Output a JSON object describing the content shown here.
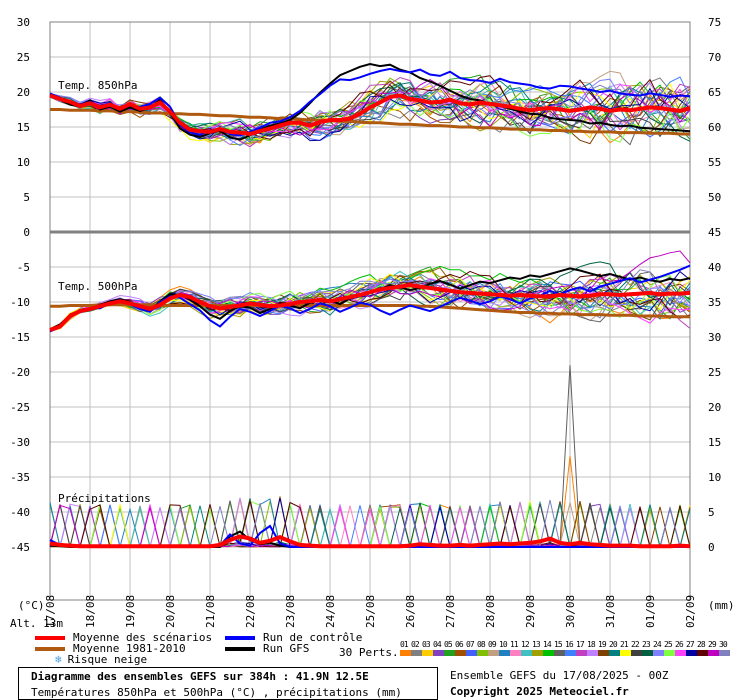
{
  "chart_data": {
    "type": "line",
    "title": "Diagramme des ensembles GEFS sur 384h : 41.9N 12.5E",
    "subtitle": "Températures 850hPa et 500hPa (°C) , précipitations (mm)",
    "run_info": "Ensemble GEFS du 17/08/2025 - 00Z",
    "copyright": "Copyright 2025 Meteociel.fr",
    "altitude": "Alt. 13m",
    "left_axis_unit": "(°C)",
    "right_axis_unit": "(mm)",
    "left_ticks": [
      30,
      25,
      20,
      15,
      10,
      5,
      0,
      -5,
      -10,
      -15,
      -20,
      -25,
      -30,
      -35,
      -40,
      -45
    ],
    "right_ticks_upper": [
      75,
      70,
      65,
      60,
      55,
      50,
      45
    ],
    "right_ticks_lower": [
      40,
      35,
      30,
      25,
      20,
      15,
      10,
      5,
      0
    ],
    "x_labels": [
      "17/08",
      "18/08",
      "19/08",
      "20/08",
      "21/08",
      "22/08",
      "23/08",
      "24/08",
      "25/08",
      "26/08",
      "27/08",
      "28/08",
      "29/08",
      "30/08",
      "31/08",
      "01/09",
      "02/09"
    ],
    "panels": {
      "t850": "Temp. 850hPa",
      "t500": "Temp. 500hPa",
      "precip": "Précipitations"
    },
    "t850_mean_scenarios": [
      19.5,
      19.0,
      18.6,
      18.0,
      18.4,
      17.8,
      18.2,
      17.6,
      18.3,
      17.6,
      17.8,
      18.5,
      17.2,
      15.6,
      14.6,
      14.4,
      14.3,
      14.7,
      14.3,
      14.2,
      14.0,
      14.4,
      14.8,
      15.2,
      15.6,
      15.6,
      15.2,
      15.7,
      16.0,
      16.0,
      16.2,
      16.9,
      17.8,
      18.5,
      19.3,
      19.5,
      19.0,
      18.8,
      18.5,
      18.6,
      18.9,
      18.4,
      18.2,
      18.5,
      18.3,
      18.1,
      17.9,
      17.6,
      17.4,
      17.6,
      17.7,
      17.5,
      17.3,
      17.5,
      17.8,
      17.6,
      17.3,
      17.5,
      17.4,
      17.6,
      17.8,
      17.7,
      17.5,
      17.3,
      17.7
    ],
    "t850_climatology": [
      17.5,
      17.5,
      17.4,
      17.4,
      17.4,
      17.3,
      17.3,
      17.2,
      17.2,
      17.1,
      17.0,
      17.0,
      16.9,
      16.9,
      16.8,
      16.8,
      16.7,
      16.6,
      16.6,
      16.5,
      16.4,
      16.4,
      16.3,
      16.2,
      16.2,
      16.1,
      16.0,
      16.0,
      15.9,
      15.8,
      15.8,
      15.7,
      15.6,
      15.6,
      15.5,
      15.4,
      15.4,
      15.3,
      15.2,
      15.2,
      15.1,
      15.0,
      15.0,
      14.9,
      14.9,
      14.8,
      14.7,
      14.7,
      14.6,
      14.6,
      14.5,
      14.5,
      14.4,
      14.4,
      14.3,
      14.3,
      14.3,
      14.2,
      14.2,
      14.2,
      14.1,
      14.1,
      14.1,
      14.0,
      14.0
    ],
    "t850_control": [
      19.8,
      19.2,
      18.5,
      18.1,
      18.6,
      18.0,
      18.4,
      17.5,
      18.1,
      17.9,
      18.3,
      19.2,
      17.9,
      15.3,
      14.2,
      13.9,
      14.5,
      14.8,
      14.0,
      13.8,
      14.3,
      14.9,
      15.6,
      15.8,
      16.4,
      17.3,
      18.6,
      19.7,
      20.9,
      21.8,
      21.7,
      22.1,
      22.6,
      23.0,
      23.3,
      23.0,
      22.8,
      23.2,
      22.5,
      22.3,
      22.9,
      22.0,
      21.7,
      21.6,
      21.3,
      21.9,
      21.4,
      21.2,
      21.0,
      20.6,
      20.5,
      20.9,
      20.8,
      20.5,
      20.3,
      20.0,
      20.2,
      19.8,
      19.6,
      19.5,
      19.8,
      19.6,
      19.3,
      19.5,
      19.4
    ],
    "t850_gfs": [
      19.6,
      18.9,
      18.2,
      17.9,
      18.8,
      17.5,
      17.9,
      17.2,
      17.8,
      17.3,
      17.7,
      18.9,
      17.0,
      14.8,
      13.9,
      13.6,
      14.1,
      14.5,
      13.5,
      13.2,
      13.8,
      14.6,
      15.2,
      15.5,
      16.0,
      17.0,
      18.4,
      19.9,
      21.2,
      22.4,
      23.0,
      23.6,
      24.0,
      23.7,
      23.9,
      23.2,
      22.8,
      22.0,
      21.5,
      20.9,
      20.2,
      19.5,
      19.0,
      18.8,
      18.3,
      18.0,
      17.6,
      17.2,
      16.9,
      16.8,
      16.3,
      16.1,
      16.0,
      15.9,
      15.5,
      15.6,
      15.3,
      15.1,
      15.2,
      14.9,
      14.8,
      14.7,
      14.6,
      14.5,
      14.4
    ],
    "t500_mean_scenarios": [
      -14.0,
      -13.5,
      -12.0,
      -11.3,
      -11.0,
      -10.6,
      -10.2,
      -9.9,
      -10.2,
      -10.6,
      -11.0,
      -10.4,
      -9.5,
      -9.0,
      -9.3,
      -10.0,
      -10.6,
      -10.9,
      -10.7,
      -10.5,
      -10.2,
      -10.4,
      -10.6,
      -10.5,
      -10.3,
      -10.0,
      -9.9,
      -9.7,
      -9.9,
      -9.6,
      -9.3,
      -9.0,
      -8.6,
      -8.2,
      -8.0,
      -7.8,
      -7.6,
      -7.8,
      -8.0,
      -8.2,
      -8.4,
      -8.6,
      -8.7,
      -8.8,
      -8.9,
      -9.0,
      -9.1,
      -9.0,
      -9.1,
      -9.2,
      -9.2,
      -9.0,
      -9.1,
      -9.2,
      -9.1,
      -8.9,
      -8.9,
      -9.0,
      -8.9,
      -8.8,
      -8.7,
      -8.9,
      -8.8,
      -8.8,
      -8.7
    ],
    "t500_climatology": [
      -10.6,
      -10.6,
      -10.5,
      -10.5,
      -10.5,
      -10.4,
      -10.4,
      -10.4,
      -10.4,
      -10.4,
      -10.4,
      -10.5,
      -10.5,
      -10.5,
      -10.5,
      -10.5,
      -10.5,
      -10.5,
      -10.5,
      -10.5,
      -10.5,
      -10.5,
      -10.5,
      -10.5,
      -10.5,
      -10.5,
      -10.5,
      -10.5,
      -10.5,
      -10.5,
      -10.5,
      -10.5,
      -10.5,
      -10.5,
      -10.5,
      -10.5,
      -10.5,
      -10.6,
      -10.6,
      -10.7,
      -10.8,
      -10.9,
      -11.0,
      -11.1,
      -11.2,
      -11.3,
      -11.4,
      -11.5,
      -11.5,
      -11.6,
      -11.6,
      -11.7,
      -11.7,
      -11.8,
      -11.8,
      -11.8,
      -11.9,
      -11.9,
      -11.9,
      -12.0,
      -12.0,
      -12.0,
      -12.1,
      -12.1,
      -12.1
    ],
    "t500_control": [
      -14.2,
      -13.6,
      -12.2,
      -11.1,
      -10.9,
      -10.9,
      -10.1,
      -9.7,
      -10.3,
      -11.0,
      -11.4,
      -10.0,
      -9.2,
      -9.4,
      -10.3,
      -11.2,
      -12.6,
      -13.5,
      -12.1,
      -11.0,
      -11.4,
      -12.0,
      -11.3,
      -10.5,
      -10.9,
      -11.6,
      -11.0,
      -10.2,
      -10.6,
      -11.4,
      -10.8,
      -10.1,
      -10.4,
      -11.2,
      -11.8,
      -11.1,
      -10.5,
      -10.9,
      -11.3,
      -10.7,
      -10.0,
      -9.4,
      -9.8,
      -10.3,
      -9.9,
      -9.2,
      -9.6,
      -10.2,
      -9.5,
      -9.1,
      -8.4,
      -8.9,
      -8.3,
      -7.9,
      -8.5,
      -7.8,
      -7.4,
      -7.0,
      -6.6,
      -7.2,
      -6.8,
      -6.4,
      -5.9,
      -5.4,
      -4.8
    ],
    "t500_gfs": [
      -13.9,
      -13.2,
      -11.9,
      -11.2,
      -11.0,
      -10.4,
      -9.9,
      -9.6,
      -10.0,
      -10.8,
      -11.3,
      -9.9,
      -8.9,
      -9.0,
      -9.7,
      -10.6,
      -11.8,
      -12.4,
      -11.3,
      -10.6,
      -10.8,
      -11.6,
      -11.0,
      -10.2,
      -10.5,
      -10.9,
      -10.1,
      -9.6,
      -9.8,
      -10.3,
      -9.5,
      -9.0,
      -8.6,
      -8.2,
      -7.6,
      -7.9,
      -8.3,
      -8.0,
      -7.4,
      -7.0,
      -7.5,
      -8.1,
      -7.6,
      -7.1,
      -7.3,
      -6.9,
      -6.5,
      -6.7,
      -6.2,
      -6.4,
      -6.0,
      -5.6,
      -5.2,
      -5.5,
      -5.9,
      -6.3,
      -6.0,
      -6.4,
      -6.8,
      -6.5,
      -6.9,
      -7.1,
      -6.7,
      -6.9,
      -6.6
    ],
    "precip_mean_scenarios": [
      0.5,
      0.3,
      0.2,
      0.1,
      0.1,
      0.1,
      0.1,
      0.1,
      0.1,
      0.1,
      0.1,
      0.1,
      0.1,
      0.1,
      0.1,
      0.1,
      0.1,
      0.3,
      1.0,
      1.5,
      1.2,
      0.6,
      0.9,
      1.4,
      0.8,
      0.3,
      0.2,
      0.1,
      0.1,
      0.1,
      0.1,
      0.1,
      0.1,
      0.1,
      0.1,
      0.1,
      0.2,
      0.4,
      0.3,
      0.2,
      0.2,
      0.3,
      0.2,
      0.3,
      0.4,
      0.5,
      0.4,
      0.5,
      0.6,
      0.8,
      1.2,
      0.6,
      0.4,
      0.6,
      0.4,
      0.3,
      0.2,
      0.2,
      0.2,
      0.1,
      0.1,
      0.1,
      0.1,
      0.2,
      0.1
    ],
    "precip_gfs": [
      0.2,
      0.1,
      0.0,
      0.0,
      0.0,
      0.0,
      0.0,
      0.0,
      0.0,
      0.0,
      0.0,
      0.0,
      0.0,
      0.0,
      0.0,
      0.0,
      0.0,
      0.0,
      1.5,
      2.2,
      1.0,
      0.4,
      0.6,
      0.2,
      0.0,
      0.0,
      0.0,
      0.0,
      0.0,
      0.0,
      0.0,
      0.0,
      0.0,
      0.0,
      0.0,
      0.0,
      0.0,
      0.0,
      0.3,
      0.0,
      0.0,
      0.0,
      0.0,
      0.0,
      0.0,
      0.0,
      0.0,
      0.0,
      0.0,
      0.0,
      0.0,
      0.0,
      0.0,
      0.0,
      0.0,
      0.0,
      0.0,
      0.0,
      0.0,
      0.0,
      0.0,
      0.0,
      0.0,
      0.0,
      0.0
    ],
    "precip_control": [
      1.0,
      0.3,
      0.1,
      0.0,
      0.0,
      0.0,
      0.0,
      0.0,
      0.0,
      0.0,
      0.0,
      0.0,
      0.0,
      0.0,
      0.0,
      0.0,
      0.0,
      0.2,
      1.8,
      0.5,
      0.2,
      2.0,
      3.0,
      0.5,
      0.0,
      0.0,
      0.0,
      0.0,
      0.0,
      0.0,
      0.0,
      0.0,
      0.0,
      0.0,
      0.0,
      0.0,
      0.0,
      0.0,
      0.0,
      0.0,
      0.0,
      0.0,
      0.0,
      0.0,
      0.0,
      0.0,
      0.0,
      0.0,
      0.0,
      0.0,
      0.0,
      0.0,
      0.0,
      0.0,
      0.0,
      0.0,
      0.0,
      0.0,
      0.0,
      0.0,
      0.0,
      0.0,
      0.0,
      0.0,
      0.0
    ],
    "precip_peak_member": {
      "x_index": 52,
      "value": 26.0
    },
    "legend": {
      "mean": "Moyenne des scénarios",
      "climatology": "Moyenne 1981-2010",
      "snow_risk": "Risque neige",
      "control": "Run de contrôle",
      "gfs": "Run GFS",
      "perts_label": "30 Perts."
    },
    "colors": {
      "mean": "#ff0000",
      "climatology": "#b05a10",
      "control": "#0000ff",
      "gfs": "#000000",
      "grid": "#c0c0c0",
      "panel_separator": "#808080"
    },
    "perturbation_labels": [
      "01",
      "02",
      "03",
      "04",
      "05",
      "06",
      "07",
      "08",
      "09",
      "10",
      "11",
      "12",
      "13",
      "14",
      "15",
      "16",
      "17",
      "18",
      "19",
      "20",
      "21",
      "22",
      "23",
      "24",
      "25",
      "26",
      "27",
      "28",
      "29",
      "30"
    ],
    "perturbation_colors": [
      "#ff8000",
      "#808080",
      "#ffcc00",
      "#8040c0",
      "#20a020",
      "#a05000",
      "#4060ff",
      "#80c000",
      "#c0a080",
      "#2080c0",
      "#ff80c0",
      "#40c0c0",
      "#a0a000",
      "#00c000",
      "#606060",
      "#4080ff",
      "#c040c0",
      "#c080ff",
      "#804000",
      "#008080",
      "#ffff00",
      "#404040",
      "#006040",
      "#8080ff",
      "#80ff40",
      "#ff40ff",
      "#0000a0",
      "#600000",
      "#c000c0",
      "#8080c0"
    ],
    "grid": true
  }
}
